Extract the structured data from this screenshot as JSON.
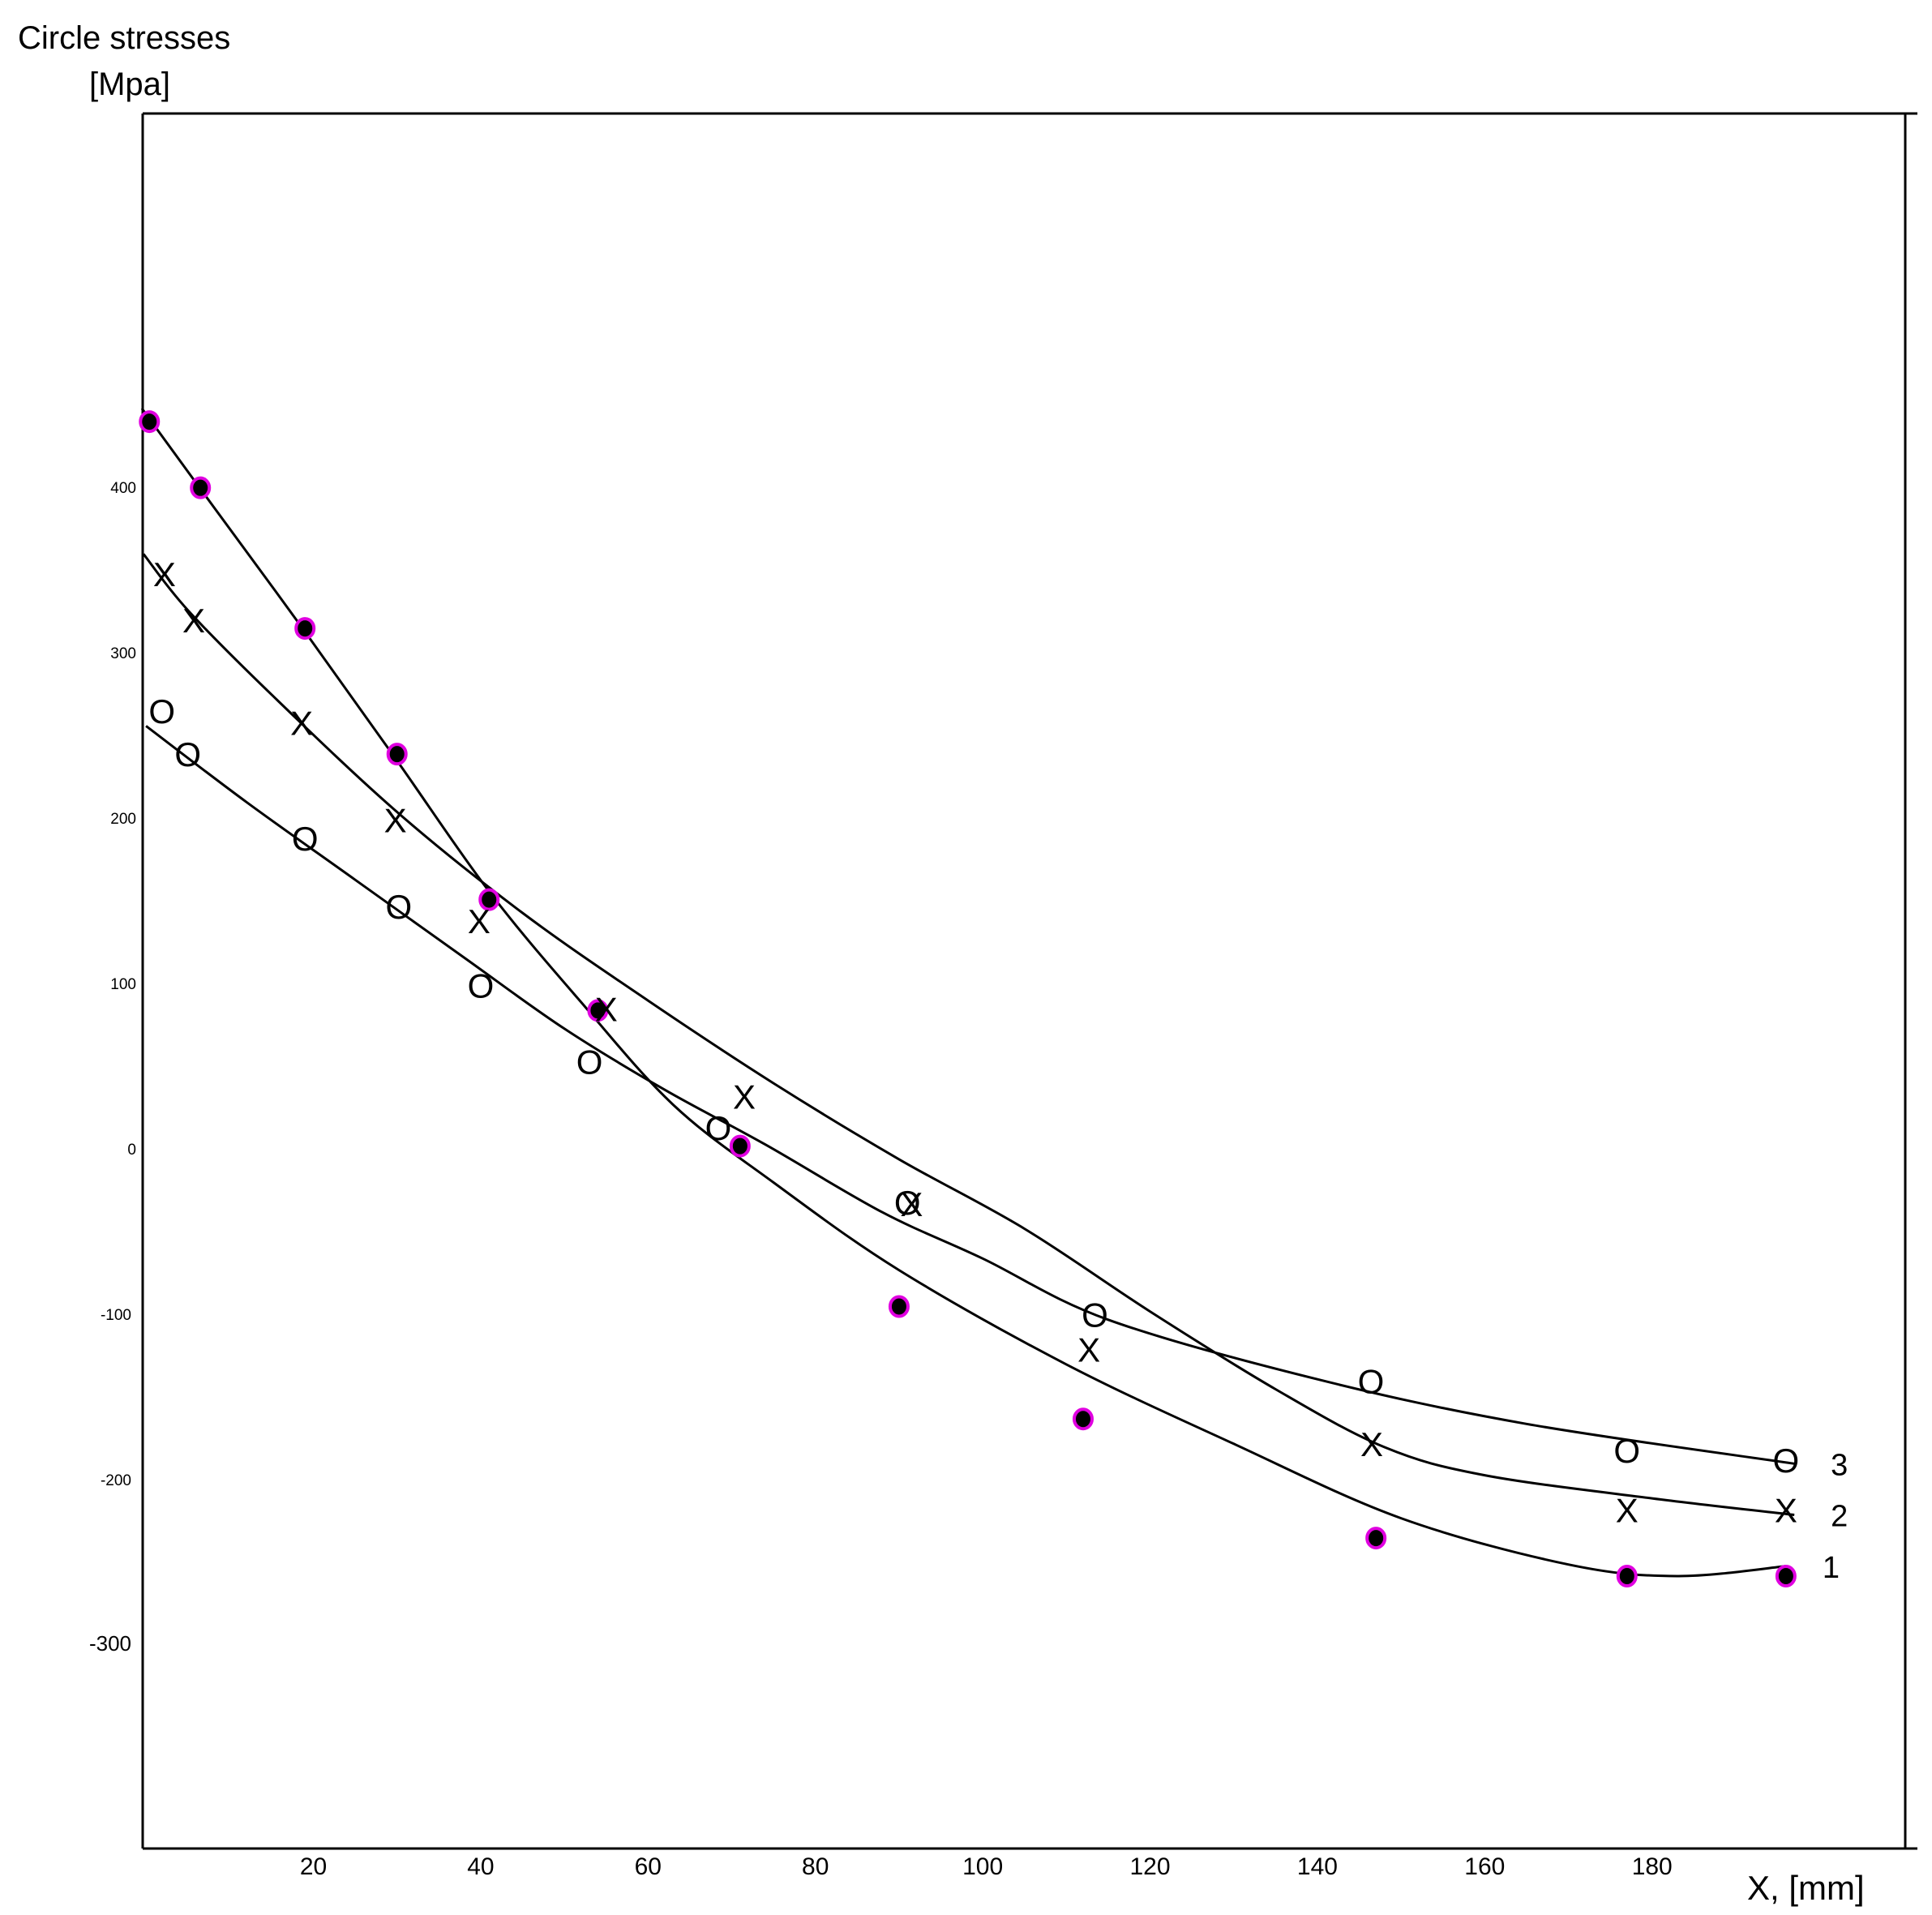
{
  "chart_data": {
    "type": "scatter",
    "title": "Circle stresses",
    "title_line2": "[Mpa]",
    "xlabel": "X, [mm]",
    "ylabel": "",
    "x_ticks": [
      20,
      40,
      60,
      80,
      100,
      120,
      140,
      160,
      180
    ],
    "y_ticks": [
      400,
      300,
      200,
      100,
      0,
      -100,
      -200,
      -300
    ],
    "legend": "none",
    "grid": false,
    "marker_glyphs": {
      "x": "X",
      "circle": "O"
    },
    "colors": {
      "dot_fill": "#000000",
      "dot_ring": "#e000e0",
      "line": "#000000"
    },
    "series": [
      {
        "label": "1",
        "marker": "filled-dot",
        "points": [
          [
            0.4,
            448
          ],
          [
            6.5,
            408
          ],
          [
            19,
            323
          ],
          [
            30,
            247
          ],
          [
            41,
            159
          ],
          [
            54,
            92
          ],
          [
            71,
            10
          ],
          [
            90,
            -87
          ],
          [
            112,
            -155
          ],
          [
            147,
            -227
          ],
          [
            177,
            -250
          ],
          [
            196,
            -250
          ]
        ],
        "curve": [
          [
            -0.5,
            456
          ],
          [
            8,
            397
          ],
          [
            19,
            321
          ],
          [
            30,
            243
          ],
          [
            41,
            164
          ],
          [
            52,
            97
          ],
          [
            63,
            35
          ],
          [
            75,
            -12
          ],
          [
            90,
            -65
          ],
          [
            110,
            -122
          ],
          [
            130,
            -170
          ],
          [
            150,
            -215
          ],
          [
            170,
            -243
          ],
          [
            183,
            -250
          ],
          [
            196,
            -244
          ]
        ]
      },
      {
        "label": "2",
        "marker": "x",
        "points": [
          [
            2.2,
            356
          ],
          [
            5.7,
            328
          ],
          [
            18.6,
            266
          ],
          [
            29.8,
            207
          ],
          [
            39.8,
            146
          ],
          [
            55,
            93
          ],
          [
            71.5,
            40
          ],
          [
            91.5,
            -25
          ],
          [
            112.7,
            -113
          ],
          [
            146.5,
            -170
          ],
          [
            177,
            -210
          ],
          [
            196,
            -210
          ]
        ],
        "curve": [
          [
            -0.3,
            368
          ],
          [
            5,
            334
          ],
          [
            15,
            283
          ],
          [
            30,
            212
          ],
          [
            45,
            151
          ],
          [
            60,
            98
          ],
          [
            75,
            48
          ],
          [
            90,
            2
          ],
          [
            105,
            -40
          ],
          [
            120,
            -90
          ],
          [
            135,
            -137
          ],
          [
            148,
            -172
          ],
          [
            160,
            -189
          ],
          [
            180,
            -203
          ],
          [
            197,
            -213
          ]
        ]
      },
      {
        "label": "3",
        "marker": "circle",
        "points": [
          [
            1.9,
            273
          ],
          [
            5.0,
            247
          ],
          [
            19,
            196
          ],
          [
            30.2,
            155
          ],
          [
            40,
            107
          ],
          [
            53,
            61
          ],
          [
            68.4,
            21
          ],
          [
            91,
            -24
          ],
          [
            113.4,
            -92
          ],
          [
            146.4,
            -132
          ],
          [
            177,
            -174
          ],
          [
            196,
            -180
          ]
        ],
        "curve": [
          [
            0,
            264
          ],
          [
            12,
            218
          ],
          [
            25,
            171
          ],
          [
            38,
            124
          ],
          [
            50,
            81
          ],
          [
            62,
            44
          ],
          [
            74,
            11
          ],
          [
            88,
            -30
          ],
          [
            100,
            -58
          ],
          [
            115,
            -95
          ],
          [
            140,
            -131
          ],
          [
            165,
            -158
          ],
          [
            197,
            -182
          ]
        ]
      }
    ]
  }
}
